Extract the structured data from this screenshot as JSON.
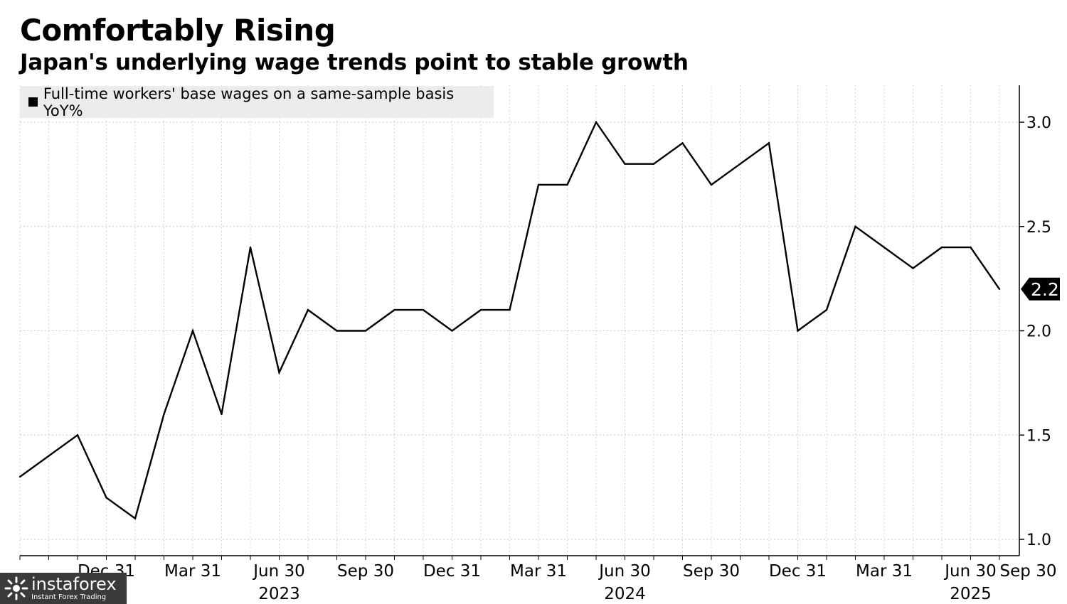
{
  "header": {
    "title": "Comfortably Rising",
    "subtitle": "Japan's underlying wage trends point to stable growth"
  },
  "watermark": {
    "brand": "instaforex",
    "tagline": "Instant Forex Trading"
  },
  "chart_data": {
    "type": "line",
    "title": "Comfortably Rising",
    "subtitle": "Japan's underlying wage trends point to stable growth",
    "xlabel": "",
    "ylabel": "",
    "ylim": [
      0.97,
      3.2
    ],
    "y_ticks": [
      1.0,
      1.5,
      2.0,
      2.5,
      3.0
    ],
    "y_tick_labels": [
      "1.0",
      "1.5",
      "2.0",
      "2.5",
      "3.0"
    ],
    "grid": true,
    "legend_position": "top-left",
    "x_tick_labels": [
      "Dec 31",
      "Mar 31",
      "Jun 30",
      "Sep 30",
      "Dec 31",
      "Mar 31",
      "Jun 30",
      "Sep 30",
      "Dec 31",
      "Mar 31",
      "Jun 30",
      "Sep 30"
    ],
    "x_tick_month_index": [
      3,
      6,
      9,
      12,
      15,
      18,
      21,
      24,
      27,
      30,
      33,
      35
    ],
    "x_year_labels": [
      "2023",
      "2024",
      "2025"
    ],
    "x_year_month_index": [
      9,
      21,
      33
    ],
    "series": [
      {
        "name": "Full-time workers' base wages on a same-sample basis YoY%",
        "color": "#000000",
        "values": [
          1.3,
          1.4,
          1.5,
          1.2,
          1.1,
          1.6,
          2.0,
          1.6,
          2.4,
          1.8,
          2.1,
          2.0,
          2.0,
          2.1,
          2.1,
          2.0,
          2.1,
          2.1,
          2.7,
          2.7,
          3.0,
          2.8,
          2.8,
          2.9,
          2.7,
          2.8,
          2.9,
          2.0,
          2.1,
          2.5,
          2.4,
          2.3,
          2.4,
          2.4,
          2.2
        ]
      }
    ],
    "last_value_label": "2.2"
  }
}
